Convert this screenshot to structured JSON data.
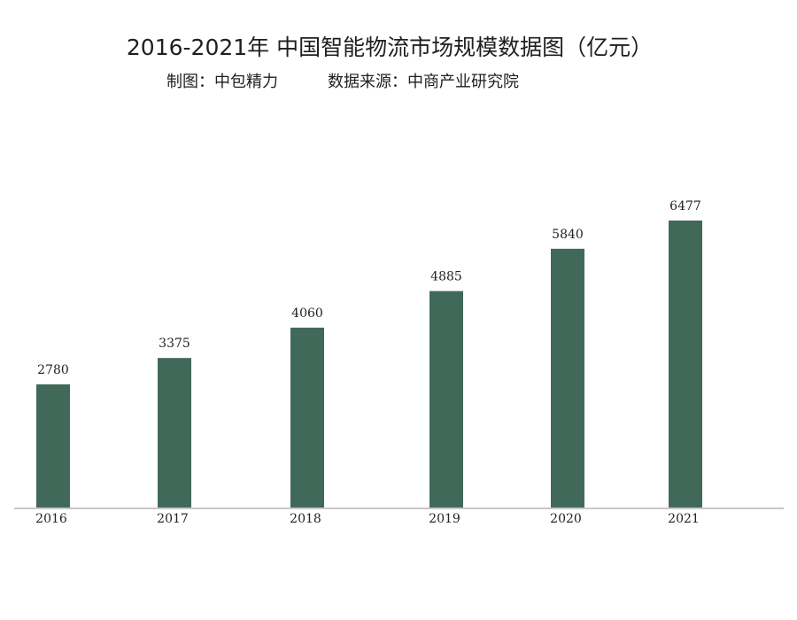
{
  "chart_data": {
    "type": "bar",
    "title": "2016-2021年 中国智能物流市场规模数据图（亿元）",
    "credit": "制图：中包精力",
    "source": "数据来源：中商产业研究院",
    "categories": [
      "2016",
      "2017",
      "2018",
      "2019",
      "2020",
      "2021"
    ],
    "values": [
      2780,
      3375,
      4060,
      4885,
      5840,
      6477
    ],
    "xlabel": "",
    "ylabel": "",
    "ylim": [
      0,
      7000
    ],
    "grid": false,
    "legend": "none",
    "bar_color": "#41695a",
    "axis_color": "#c8c8c8"
  }
}
